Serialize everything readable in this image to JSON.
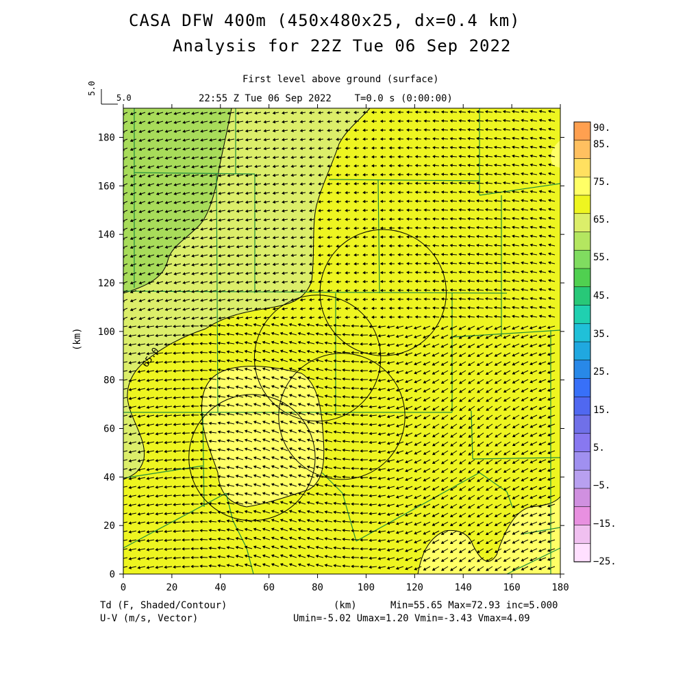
{
  "header": {
    "title_line1": "CASA DFW 400m (450x480x25, dx=0.4 km)",
    "title_line2": "Analysis for 22Z Tue 06 Sep 2022",
    "level": "First level above ground (surface)",
    "time": "22:55 Z Tue 06 Sep 2022    T=0.0 s (0:00:00)"
  },
  "vector_key": {
    "rotated": "5.0",
    "label": "5.0"
  },
  "axes": {
    "x_ticks": [
      "0",
      "20",
      "40",
      "60",
      "80",
      "100",
      "120",
      "140",
      "160",
      "180"
    ],
    "y_ticks": [
      "0",
      "20",
      "40",
      "60",
      "80",
      "100",
      "120",
      "140",
      "160",
      "180"
    ],
    "x_label": "(km)",
    "y_label": "(km)",
    "x_range": [
      0,
      180
    ],
    "y_range": [
      0,
      192
    ]
  },
  "contour_label": "65.0",
  "colorbar": {
    "labels": [
      "90.",
      "85.",
      "75.",
      "65.",
      "55.",
      "45.",
      "35.",
      "25.",
      "15.",
      "5.",
      "−5.",
      "−15.",
      "−25."
    ],
    "colors": [
      "#ffa050",
      "#ffc060",
      "#ffe060",
      "#ffff66",
      "#eef520",
      "#dcee6a",
      "#b4e660",
      "#80dc60",
      "#50d050",
      "#28c878",
      "#20d0b0",
      "#20c0d8",
      "#20a8e0",
      "#2888e8",
      "#3870f8",
      "#5068f0",
      "#7070e8",
      "#8878f0",
      "#a090f0",
      "#b8a0f0",
      "#d090e0",
      "#e890e0",
      "#f0c0f0",
      "#ffe0ff"
    ]
  },
  "footer": {
    "left1": "Td (F, Shaded/Contour)",
    "left2": "U-V (m/s, Vector)",
    "mid": "(km)",
    "right1": "Min=55.65 Max=72.93 inc=5.000",
    "right2": "Umin=-5.02 Umax=1.20 Vmin=-3.43 Vmax=4.09"
  },
  "map_colors": {
    "green": "#a8dc5a",
    "lightgreen": "#dcee6a",
    "yellow": "#eef520",
    "lightyellow": "#ffff66",
    "counties": "#1c8c3c"
  },
  "radars": [
    {
      "x": 107,
      "y": 116,
      "r": 26
    },
    {
      "x": 90,
      "y": 65,
      "r": 26
    },
    {
      "x": 53,
      "y": 48,
      "r": 26
    },
    {
      "x": 80,
      "y": 89,
      "r": 26
    }
  ]
}
